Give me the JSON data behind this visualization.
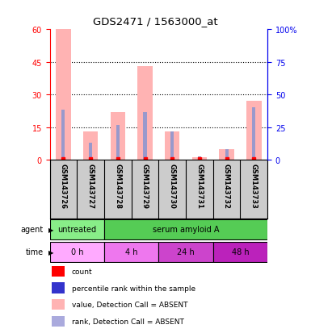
{
  "title": "GDS2471 / 1563000_at",
  "samples": [
    "GSM143726",
    "GSM143727",
    "GSM143728",
    "GSM143729",
    "GSM143730",
    "GSM143731",
    "GSM143732",
    "GSM143733"
  ],
  "pink_bar_heights": [
    60,
    13,
    22,
    43,
    13,
    1,
    5,
    27
  ],
  "blue_bar_heights": [
    23,
    8,
    16,
    22,
    13,
    1.5,
    5,
    24
  ],
  "pink_bar_color": "#FFB3B3",
  "blue_bar_color": "#9999CC",
  "red_dot_color": "#FF0000",
  "blue_dot_color": "#3333CC",
  "left_yticks": [
    0,
    15,
    30,
    45,
    60
  ],
  "right_yticks": [
    0,
    25,
    50,
    75,
    100
  ],
  "agent_groups": [
    {
      "label": "untreated",
      "start": 0,
      "end": 2,
      "color": "#88EE88"
    },
    {
      "label": "serum amyloid A",
      "start": 2,
      "end": 8,
      "color": "#55CC55"
    }
  ],
  "time_groups": [
    {
      "label": "0 h",
      "start": 0,
      "end": 2,
      "color": "#FFAAFF"
    },
    {
      "label": "4 h",
      "start": 2,
      "end": 4,
      "color": "#EE77EE"
    },
    {
      "label": "24 h",
      "start": 4,
      "end": 6,
      "color": "#CC44CC"
    },
    {
      "label": "48 h",
      "start": 6,
      "end": 8,
      "color": "#BB22BB"
    }
  ],
  "legend_items": [
    {
      "color": "#FF0000",
      "label": "count"
    },
    {
      "color": "#3333CC",
      "label": "percentile rank within the sample"
    },
    {
      "color": "#FFB3B3",
      "label": "value, Detection Call = ABSENT"
    },
    {
      "color": "#AAAADD",
      "label": "rank, Detection Call = ABSENT"
    }
  ],
  "background_color": "#FFFFFF",
  "left_axis_color": "#FF0000",
  "right_axis_color": "#0000EE",
  "sample_bg_color": "#CCCCCC",
  "sample_label_fontsize": 6.5,
  "bar_fontsize": 6
}
